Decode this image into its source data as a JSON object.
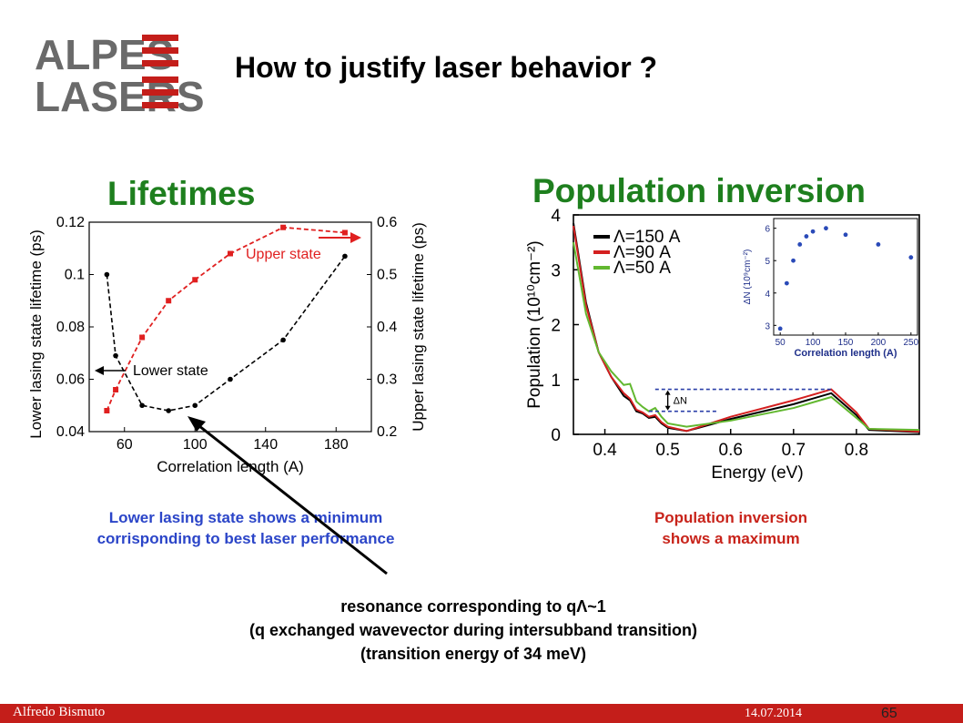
{
  "logo": {
    "line1": "ALPES",
    "line2": "LASERS"
  },
  "title": "How to justify laser behavior ?",
  "left_heading": "Lifetimes",
  "right_heading": "Population inversion",
  "left_caption": {
    "line1": "Lower lasing state shows a minimum",
    "line2": "corrisponding to best laser performance"
  },
  "right_caption": {
    "line1": "Population inversion",
    "line2": "shows a maximum"
  },
  "resonance": {
    "line1": "resonance corresponding to qΛ~1",
    "line2": "(q exchanged wavevector during intersubband transition)",
    "line3": "(transition energy of 34 meV)"
  },
  "footer": {
    "author": "Alfredo Bismuto",
    "date": "14.07.2014",
    "page": "65"
  },
  "colors": {
    "heading_green": "#1e7f1e",
    "caption_blue": "#2b45c8",
    "caption_red": "#c8231a",
    "footer_red": "#c41e1a",
    "logo_gray": "#6a6a6a"
  },
  "chart_data": [
    {
      "type": "line",
      "xlabel": "Correlation length (A)",
      "ylabel": "Lower lasing state lifetime (ps)",
      "y2label": "Upper lasing state lifetime (ps)",
      "xlim": [
        40,
        200
      ],
      "ylim": [
        0.04,
        0.12
      ],
      "y2lim": [
        0.2,
        0.6
      ],
      "xticks": [
        "60",
        "100",
        "140",
        "180"
      ],
      "yticks": [
        "0.04",
        "0.06",
        "0.08",
        "0.1",
        "0.12"
      ],
      "y2ticks": [
        "0.2",
        "0.3",
        "0.4",
        "0.5",
        "0.6"
      ],
      "series": [
        {
          "name": "Lower state",
          "axis": "left",
          "color": "#000000",
          "x": [
            50,
            55,
            70,
            85,
            100,
            120,
            150,
            185
          ],
          "y": [
            0.1,
            0.069,
            0.05,
            0.048,
            0.05,
            0.06,
            0.075,
            0.107
          ]
        },
        {
          "name": "Upper state",
          "axis": "right",
          "color": "#e02020",
          "x": [
            50,
            55,
            70,
            85,
            100,
            120,
            150,
            185
          ],
          "y": [
            0.24,
            0.28,
            0.38,
            0.45,
            0.49,
            0.54,
            0.59,
            0.58
          ]
        }
      ]
    },
    {
      "type": "line",
      "xlabel": "Energy (eV)",
      "ylabel": "Population (10¹⁰cm⁻²)",
      "xlim": [
        0.35,
        0.9
      ],
      "ylim": [
        0,
        4
      ],
      "xticks": [
        "0.4",
        "0.5",
        "0.6",
        "0.7",
        "0.8"
      ],
      "yticks": [
        "0",
        "1",
        "2",
        "3",
        "4"
      ],
      "annotation": "ΔN",
      "series": [
        {
          "name": "Λ=150 A",
          "color": "#000000",
          "x": [
            0.35,
            0.37,
            0.39,
            0.41,
            0.43,
            0.44,
            0.45,
            0.46,
            0.47,
            0.48,
            0.49,
            0.5,
            0.53,
            0.6,
            0.7,
            0.76,
            0.8,
            0.82,
            0.9
          ],
          "y": [
            3.85,
            2.4,
            1.5,
            1.05,
            0.7,
            0.62,
            0.42,
            0.38,
            0.3,
            0.32,
            0.2,
            0.12,
            0.06,
            0.28,
            0.55,
            0.75,
            0.35,
            0.08,
            0.04
          ]
        },
        {
          "name": "Λ=90 A",
          "color": "#d42020",
          "x": [
            0.35,
            0.37,
            0.39,
            0.41,
            0.43,
            0.44,
            0.45,
            0.46,
            0.47,
            0.48,
            0.49,
            0.5,
            0.53,
            0.6,
            0.7,
            0.76,
            0.8,
            0.82,
            0.9
          ],
          "y": [
            3.8,
            2.35,
            1.5,
            1.05,
            0.75,
            0.65,
            0.45,
            0.4,
            0.32,
            0.35,
            0.22,
            0.14,
            0.06,
            0.32,
            0.62,
            0.82,
            0.4,
            0.1,
            0.05
          ]
        },
        {
          "name": "Λ=50 A",
          "color": "#62b830",
          "x": [
            0.35,
            0.37,
            0.39,
            0.41,
            0.43,
            0.44,
            0.45,
            0.46,
            0.47,
            0.48,
            0.49,
            0.5,
            0.53,
            0.6,
            0.7,
            0.76,
            0.8,
            0.82,
            0.9
          ],
          "y": [
            3.5,
            2.2,
            1.5,
            1.15,
            0.9,
            0.92,
            0.6,
            0.5,
            0.42,
            0.48,
            0.32,
            0.2,
            0.14,
            0.25,
            0.48,
            0.68,
            0.3,
            0.1,
            0.08
          ]
        }
      ],
      "inset": {
        "type": "scatter",
        "xlabel": "Correlation length (A)",
        "ylabel": "ΔN (10⁹cm⁻²)",
        "xlim": [
          40,
          260
        ],
        "ylim": [
          2.7,
          6.3
        ],
        "xticks": [
          "50",
          "100",
          "150",
          "200",
          "250"
        ],
        "yticks": [
          "3",
          "4",
          "5",
          "6"
        ],
        "color": "#2a4ab8",
        "x": [
          50,
          60,
          70,
          80,
          90,
          100,
          120,
          150,
          200,
          250
        ],
        "y": [
          2.9,
          4.3,
          5.0,
          5.5,
          5.75,
          5.9,
          6.0,
          5.8,
          5.5,
          5.1
        ]
      }
    }
  ]
}
